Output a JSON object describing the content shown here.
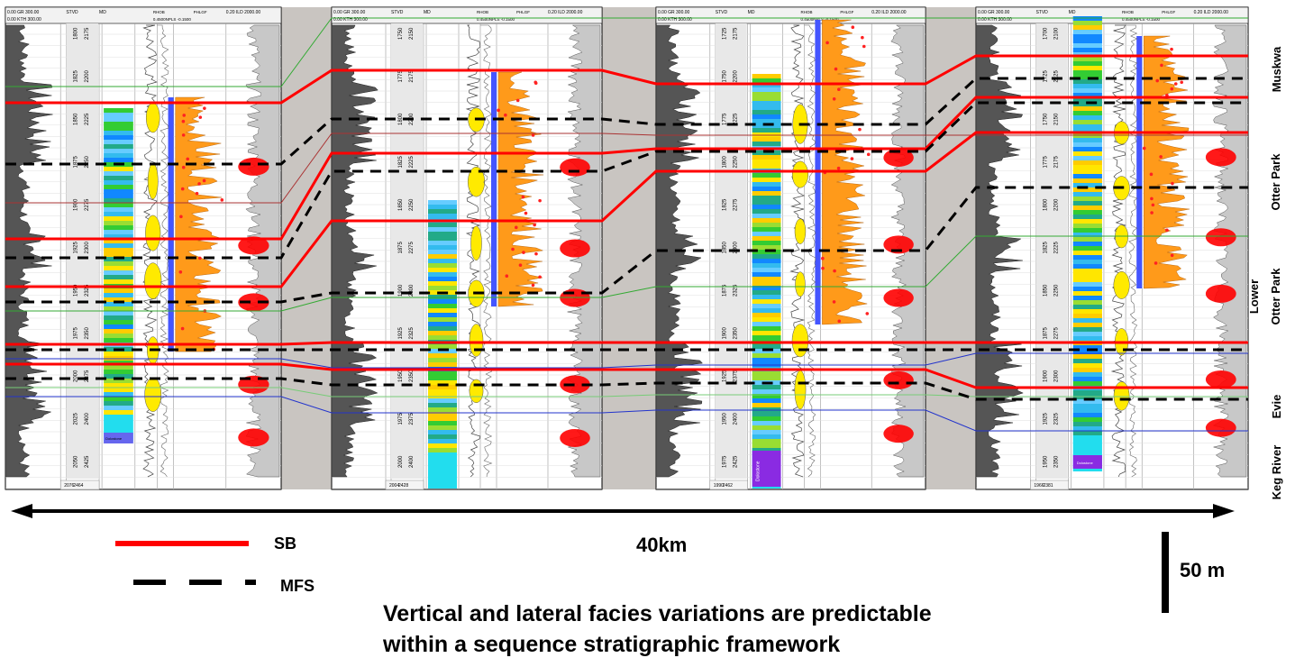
{
  "colors": {
    "sb": "#ff0000",
    "mfs": "#000000",
    "gap": "#c9c5c1",
    "green_marker": "#33aa33",
    "blue_marker": "#2233cc",
    "teal_marker": "#22aaaa",
    "gr_fill": "#555555",
    "dense_fill": "#ffea00",
    "pe_fill": "#ff9a1a",
    "res_fill": "#ff0000",
    "pale_fill": "#c8c8c8",
    "dolomite": "#8a2be2"
  },
  "well_header": {
    "gr": "0.00 GR 300.00",
    "kth": "0.00 KTH 300.00",
    "stvd": "STVD",
    "md": "MD",
    "rho": "RHOB",
    "npls": "0.4500NPLS -0.1500",
    "phi": "PHLGF",
    "ild": "0.20 ILD 2000.00"
  },
  "wells": [
    {
      "stvd_ticks": [
        "1800",
        "1825",
        "1850",
        "1875",
        "1900",
        "1925",
        "1950",
        "1975",
        "2000",
        "2025",
        "2050"
      ],
      "md_ticks": [
        "2175",
        "2200",
        "2225",
        "2250",
        "2275",
        "2300",
        "2325",
        "2350",
        "2375",
        "2400",
        "2425"
      ],
      "footer": [
        "2076",
        "2464"
      ]
    },
    {
      "stvd_ticks": [
        "1750",
        "1775",
        "1800",
        "1825",
        "1850",
        "1875",
        "1900",
        "1925",
        "1950",
        "1975",
        "2000"
      ],
      "md_ticks": [
        "2150",
        "2175",
        "2200",
        "2225",
        "2250",
        "2275",
        "2300",
        "2325",
        "2350",
        "2375",
        "2400"
      ],
      "footer": [
        "2004",
        "2428"
      ]
    },
    {
      "stvd_ticks": [
        "1725",
        "1750",
        "1775",
        "1800",
        "1825",
        "1850",
        "1875",
        "1900",
        "1925",
        "1950",
        "1975"
      ],
      "md_ticks": [
        "2175",
        "2200",
        "2225",
        "2250",
        "2275",
        "2300",
        "2325",
        "2350",
        "2375",
        "2400",
        "2425"
      ],
      "footer": [
        "1990",
        "2462"
      ]
    },
    {
      "stvd_ticks": [
        "1700",
        "1725",
        "1750",
        "1775",
        "1800",
        "1825",
        "1850",
        "1875",
        "1900",
        "1925",
        "1950"
      ],
      "md_ticks": [
        "2100",
        "2125",
        "2150",
        "2175",
        "2200",
        "2225",
        "2250",
        "2275",
        "2300",
        "2325",
        "2350"
      ],
      "footer": [
        "1966",
        "2381"
      ]
    }
  ],
  "strata": {
    "muskwa": "Muskwa",
    "otter_park": "Otter Park",
    "lower": "Lower",
    "lower_otter_park": "Otter Park",
    "evie": "Evie",
    "keg_river": "Keg River"
  },
  "dolostone": "Dolostone",
  "scale": {
    "distance": "40km",
    "vertical": "50 m"
  },
  "legend": {
    "sb": "SB",
    "mfs": "MFS"
  },
  "caption": {
    "line1": "Vertical and lateral facies variations are predictable",
    "line2": "within a sequence stratigraphic framework"
  }
}
